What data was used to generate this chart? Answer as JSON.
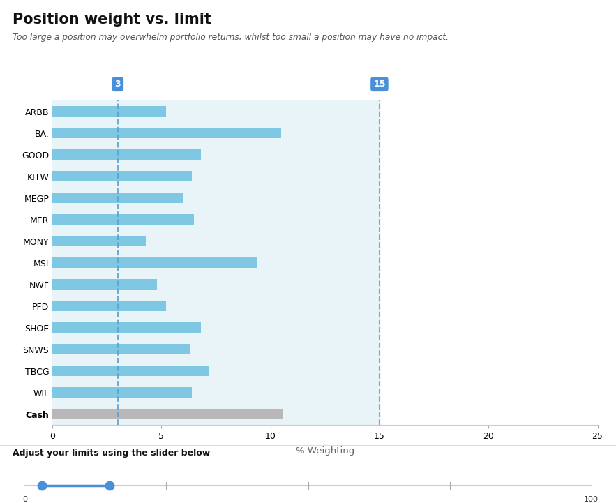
{
  "title": "Position weight vs. limit",
  "subtitle": "Too large a position may overwhelm portfolio returns, whilst too small a position may have no impact.",
  "categories": [
    "ARBB",
    "BA.",
    "GOOD",
    "KITW",
    "MEGP",
    "MER",
    "MONY",
    "MSI",
    "NWF",
    "PFD",
    "SHOE",
    "SNWS",
    "TBCG",
    "WIL",
    "Cash"
  ],
  "values": [
    5.2,
    10.5,
    6.8,
    6.4,
    6.0,
    6.5,
    4.3,
    9.4,
    4.8,
    5.2,
    6.8,
    6.3,
    7.2,
    6.4,
    10.6
  ],
  "bar_colors": [
    "#7ec8e3",
    "#7ec8e3",
    "#7ec8e3",
    "#7ec8e3",
    "#7ec8e3",
    "#7ec8e3",
    "#7ec8e3",
    "#7ec8e3",
    "#7ec8e3",
    "#7ec8e3",
    "#7ec8e3",
    "#7ec8e3",
    "#7ec8e3",
    "#7ec8e3",
    "#b8b8b8"
  ],
  "background_color": "#ffffff",
  "chart_bg_color": "#e8f4f8",
  "limit_min": 3,
  "limit_max": 15,
  "limit_line_color": "#5a9fd4",
  "xlabel": "% Weighting",
  "xlim": [
    0,
    25
  ],
  "xticks": [
    0,
    5,
    10,
    15,
    20,
    25
  ],
  "slider_label": "Adjust your limits using the slider below",
  "slider_val1": 3,
  "slider_val2": 15,
  "slider_color": "#4a90d9",
  "slider_track_color": "#cccccc",
  "badge_color": "#4a90d9",
  "badge_text_color": "#ffffff"
}
